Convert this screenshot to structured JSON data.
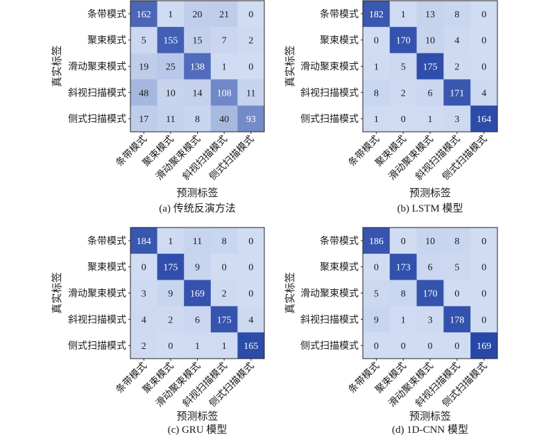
{
  "style": {
    "colormap_low": "#d0dcf2",
    "colormap_high": "#2848a8",
    "text_dark": "#1a1a1a",
    "text_light": "#ffffff",
    "frame": "#222222"
  },
  "chart_data": [
    {
      "type": "heatmap",
      "title": "(a) 传统反演方法",
      "xlabel": "预测标签",
      "ylabel": "真实标签",
      "categories": [
        "条带模式",
        "聚束模式",
        "滑动聚束模式",
        "斜视扫描模式",
        "侧式扫描模式"
      ],
      "values": [
        [
          162,
          1,
          20,
          21,
          0
        ],
        [
          5,
          155,
          15,
          7,
          2
        ],
        [
          19,
          25,
          138,
          1,
          0
        ],
        [
          48,
          10,
          14,
          108,
          11
        ],
        [
          17,
          11,
          8,
          40,
          93
        ]
      ]
    },
    {
      "type": "heatmap",
      "title": "(b) LSTM 模型",
      "xlabel": "预测标签",
      "ylabel": "真实标签",
      "categories": [
        "条带模式",
        "聚束模式",
        "滑动聚束模式",
        "斜视扫描模式",
        "侧式扫描模式"
      ],
      "values": [
        [
          182,
          1,
          13,
          8,
          0
        ],
        [
          0,
          170,
          10,
          4,
          0
        ],
        [
          1,
          5,
          175,
          2,
          0
        ],
        [
          8,
          2,
          6,
          171,
          4
        ],
        [
          1,
          0,
          1,
          3,
          164
        ]
      ]
    },
    {
      "type": "heatmap",
      "title": "(c) GRU 模型",
      "xlabel": "预测标签",
      "ylabel": "真实标签",
      "categories": [
        "条带模式",
        "聚束模式",
        "滑动聚束模式",
        "斜视扫描模式",
        "侧式扫描模式"
      ],
      "values": [
        [
          184,
          1,
          11,
          8,
          0
        ],
        [
          0,
          175,
          9,
          0,
          0
        ],
        [
          3,
          9,
          169,
          2,
          0
        ],
        [
          4,
          2,
          6,
          175,
          4
        ],
        [
          2,
          0,
          1,
          1,
          165
        ]
      ]
    },
    {
      "type": "heatmap",
      "title": "(d) 1D-CNN 模型",
      "xlabel": "预测标签",
      "ylabel": "真实标签",
      "categories": [
        "条带模式",
        "聚束模式",
        "滑动聚束模式",
        "斜视扫描模式",
        "侧式扫描模式"
      ],
      "values": [
        [
          186,
          0,
          10,
          8,
          0
        ],
        [
          0,
          173,
          6,
          5,
          0
        ],
        [
          5,
          8,
          170,
          0,
          0
        ],
        [
          9,
          1,
          3,
          178,
          0
        ],
        [
          0,
          0,
          0,
          0,
          169
        ]
      ]
    }
  ]
}
